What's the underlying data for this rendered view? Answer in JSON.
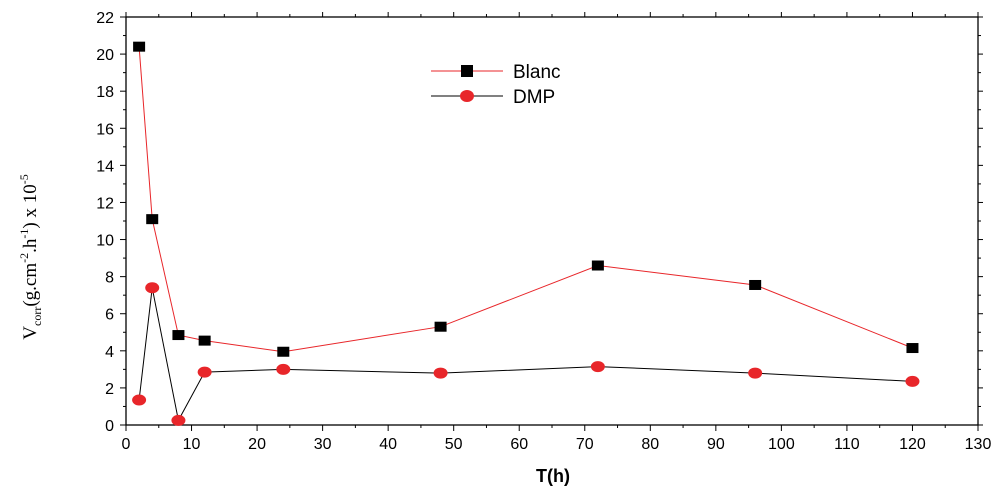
{
  "chart_data": {
    "type": "line",
    "xlabel": "T(h)",
    "ylabel": {
      "main": "V",
      "sub": "corr",
      "unit_start": "(g.cm",
      "sup1": "-2",
      "unit_mid": ".h",
      "sup2": "-1",
      "unit_end": ") x 10",
      "sup3": "-5"
    },
    "xlim": [
      0,
      130
    ],
    "ylim": [
      0,
      22
    ],
    "xticks": [
      0,
      10,
      20,
      30,
      40,
      50,
      60,
      70,
      80,
      90,
      100,
      110,
      120,
      130
    ],
    "yticks": [
      0,
      2,
      4,
      6,
      8,
      10,
      12,
      14,
      16,
      18,
      20,
      22
    ],
    "legend_position": "top-center",
    "series": [
      {
        "name": "Blanc",
        "line_color": "#e8262a",
        "marker": "square",
        "marker_color": "#000000",
        "x": [
          2,
          4,
          8,
          12,
          24,
          48,
          72,
          96,
          120
        ],
        "y": [
          20.4,
          11.1,
          4.85,
          4.55,
          3.95,
          5.3,
          8.6,
          7.55,
          4.15
        ]
      },
      {
        "name": "DMP",
        "line_color": "#000000",
        "marker": "circle",
        "marker_color": "#e8262a",
        "x": [
          2,
          4,
          8,
          12,
          24,
          48,
          72,
          96,
          120
        ],
        "y": [
          1.35,
          7.4,
          0.25,
          2.85,
          3.0,
          2.8,
          3.15,
          2.8,
          2.35
        ]
      }
    ]
  }
}
